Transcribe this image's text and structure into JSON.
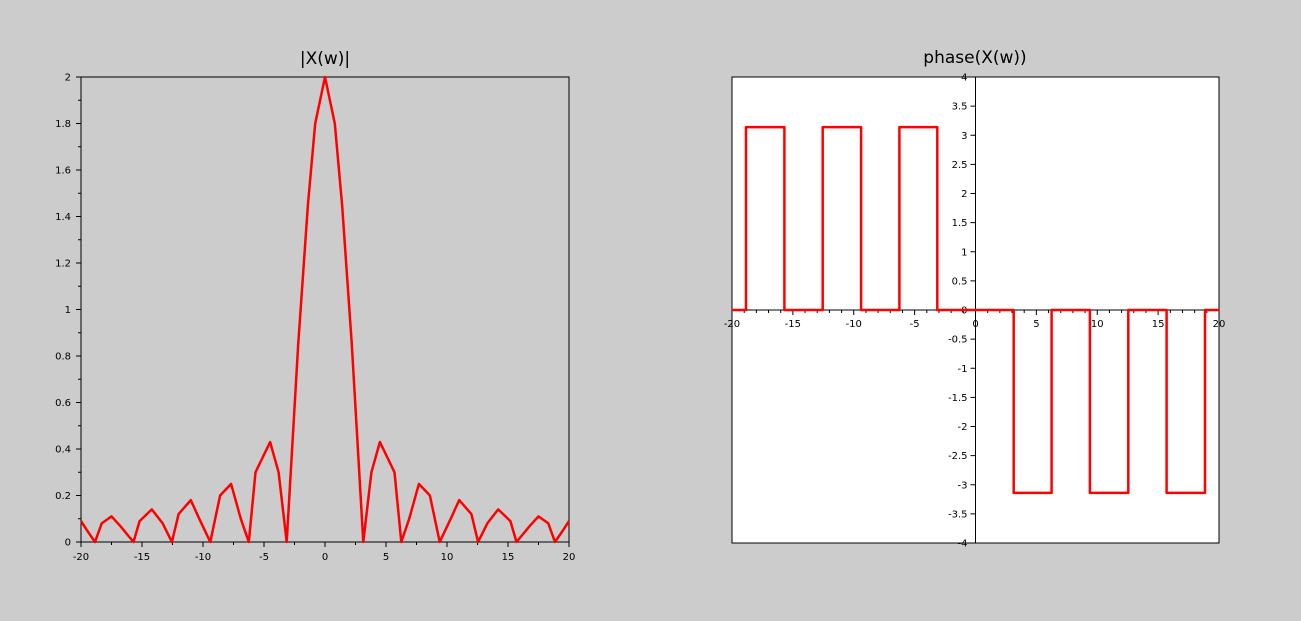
{
  "figure": {
    "background": "#cccccc",
    "line_color": "#ff0000"
  },
  "chart_data": [
    {
      "type": "line",
      "title": "|X(w)|",
      "xlabel": "",
      "ylabel": "",
      "xlim": [
        -20,
        20
      ],
      "ylim": [
        0,
        2
      ],
      "grid": false,
      "background": "#cccccc",
      "axes_position": "box",
      "x_ticks": [
        -20,
        -15,
        -10,
        -5,
        0,
        5,
        10,
        15,
        20
      ],
      "x_tick_labels": [
        "-20",
        "-15",
        "-10",
        "-5",
        "0",
        "5",
        "10",
        "15",
        "20"
      ],
      "y_ticks": [
        0,
        0.2,
        0.4,
        0.6,
        0.8,
        1,
        1.2,
        1.4,
        1.6,
        1.8,
        2
      ],
      "y_tick_labels": [
        "0",
        "0.2",
        "0.4",
        "0.6",
        "0.8",
        "1",
        "1.2",
        "1.4",
        "1.6",
        "1.8",
        "2"
      ],
      "series": [
        {
          "color": "#ff0000",
          "x": [
            -20,
            -19.5,
            -18.85,
            -18.3,
            -17.5,
            -16.8,
            -15.7,
            -15.2,
            -14.2,
            -13.3,
            -12.55,
            -12,
            -11,
            -10.3,
            -9.4,
            -8.6,
            -7.7,
            -6.9,
            -6.25,
            -5.7,
            -4.5,
            -3.8,
            -3.14,
            -2.2,
            -1.4,
            -0.8,
            0,
            0.8,
            1.4,
            2.2,
            3.14,
            3.8,
            4.5,
            5.7,
            6.25,
            6.9,
            7.7,
            8.6,
            9.4,
            10.3,
            11,
            12,
            12.55,
            13.3,
            14.2,
            15.2,
            15.7,
            16.8,
            17.5,
            18.3,
            18.85,
            19.5,
            20
          ],
          "y": [
            0.09,
            0.05,
            0,
            0.08,
            0.11,
            0.07,
            0,
            0.09,
            0.14,
            0.08,
            0,
            0.12,
            0.18,
            0.1,
            0,
            0.2,
            0.25,
            0.1,
            0,
            0.3,
            0.43,
            0.3,
            0,
            0.85,
            1.45,
            1.8,
            2,
            1.8,
            1.45,
            0.85,
            0,
            0.3,
            0.43,
            0.3,
            0,
            0.1,
            0.25,
            0.2,
            0,
            0.1,
            0.18,
            0.12,
            0,
            0.08,
            0.14,
            0.09,
            0,
            0.07,
            0.11,
            0.08,
            0,
            0.05,
            0.09
          ]
        }
      ]
    },
    {
      "type": "line",
      "title": "phase(X(w))",
      "xlabel": "",
      "ylabel": "",
      "xlim": [
        -20,
        20
      ],
      "ylim": [
        -4,
        4
      ],
      "grid": false,
      "background": "#ffffff",
      "axes_position": "origin",
      "x_ticks": [
        -20,
        -15,
        -10,
        -5,
        0,
        5,
        10,
        15,
        20
      ],
      "x_tick_labels": [
        "-20",
        "-15",
        "-10",
        "-5",
        "0",
        "5",
        "10",
        "15",
        "20"
      ],
      "y_ticks": [
        -4,
        -3.5,
        -3,
        -2.5,
        -2,
        -1.5,
        -1,
        -0.5,
        0,
        0.5,
        1,
        1.5,
        2,
        2.5,
        3,
        3.5,
        4
      ],
      "y_tick_labels": [
        "-4",
        "-3.5",
        "-3",
        "-2.5",
        "-2",
        "-1.5",
        "-1",
        "-0.5",
        "0",
        "0.5",
        "1",
        "1.5",
        "2",
        "2.5",
        "3",
        "3.5",
        "4"
      ],
      "series": [
        {
          "color": "#ff0000",
          "x": [
            -20,
            -18.85,
            -18.85,
            -15.7,
            -15.7,
            -12.55,
            -12.55,
            -9.4,
            -9.4,
            -6.25,
            -6.25,
            -3.14,
            -3.14,
            3.14,
            3.14,
            6.25,
            6.25,
            9.4,
            9.4,
            12.55,
            12.55,
            15.7,
            15.7,
            18.85,
            18.85,
            20
          ],
          "y": [
            0,
            0,
            3.14,
            3.14,
            0,
            0,
            3.14,
            3.14,
            0,
            0,
            3.14,
            3.14,
            0,
            0,
            -3.14,
            -3.14,
            0,
            0,
            -3.14,
            -3.14,
            0,
            0,
            -3.14,
            -3.14,
            0,
            0
          ]
        }
      ]
    }
  ]
}
